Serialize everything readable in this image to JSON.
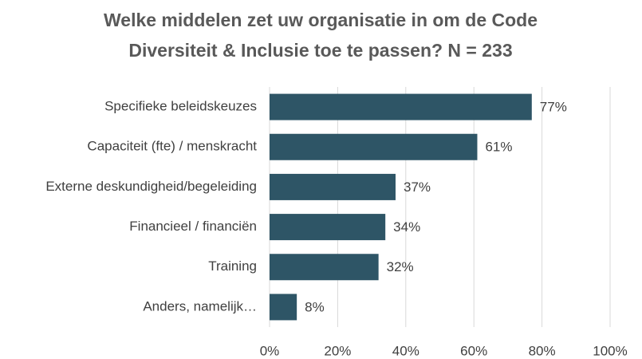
{
  "chart_data": {
    "type": "barh",
    "title": "Welke middelen zet uw organisatie in om de Code Diversiteit & Inclusie toe te passen? N = 233",
    "categories": [
      "Specifieke beleidskeuzes",
      "Capaciteit (fte) / menskracht",
      "Externe deskundigheid/begeleiding",
      "Financieel / financiën",
      "Training",
      "Anders, namelijk…"
    ],
    "values": [
      77,
      61,
      37,
      34,
      32,
      8
    ],
    "value_labels": [
      "77%",
      "61%",
      "37%",
      "34%",
      "32%",
      "8%"
    ],
    "color": "#2e5566",
    "xlim": [
      0,
      100
    ],
    "xticks": [
      {
        "value": 0,
        "label": "0%"
      },
      {
        "value": 20,
        "label": "20%"
      },
      {
        "value": 40,
        "label": "40%"
      },
      {
        "value": 60,
        "label": "60%"
      },
      {
        "value": 80,
        "label": "80%"
      },
      {
        "value": 100,
        "label": "100%"
      }
    ],
    "grid": true
  }
}
